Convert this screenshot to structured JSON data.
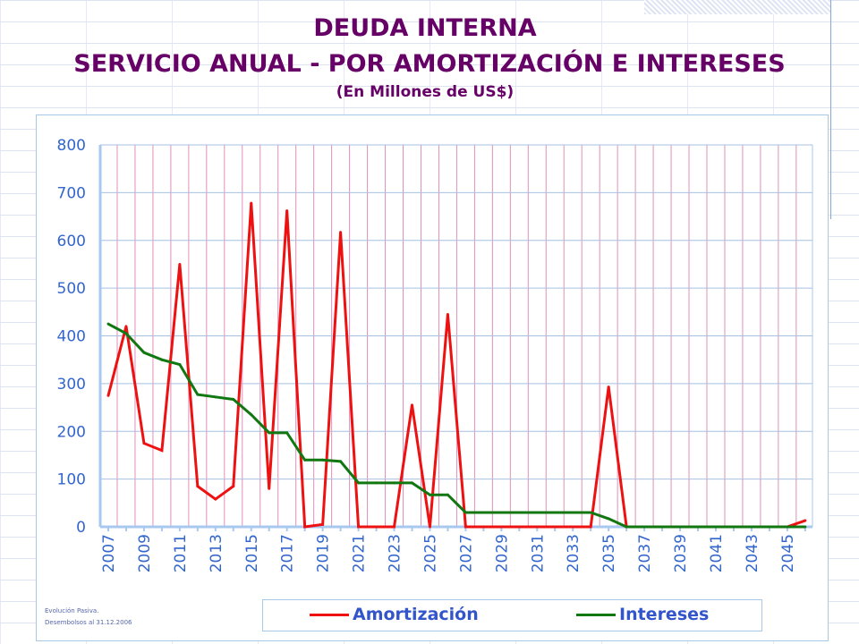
{
  "chart_data": {
    "type": "line",
    "title": "DEUDA INTERNA",
    "subtitle": "SERVICIO ANUAL - POR AMORTIZACIÓN E INTERESES",
    "unit_note": "(En Millones de US$)",
    "x": [
      2007,
      2008,
      2009,
      2010,
      2011,
      2012,
      2013,
      2014,
      2015,
      2016,
      2017,
      2018,
      2019,
      2020,
      2021,
      2022,
      2023,
      2024,
      2025,
      2026,
      2027,
      2028,
      2029,
      2030,
      2031,
      2032,
      2033,
      2034,
      2035,
      2036,
      2037,
      2038,
      2039,
      2040,
      2041,
      2042,
      2043,
      2044,
      2045,
      2046
    ],
    "xticks": [
      "2007",
      "2009",
      "2011",
      "2013",
      "2015",
      "2017",
      "2019",
      "2021",
      "2023",
      "2025",
      "2027",
      "2029",
      "2031",
      "2033",
      "2035",
      "2037",
      "2039",
      "2041",
      "2043",
      "2045"
    ],
    "yticks": [
      "0",
      "100",
      "200",
      "300",
      "400",
      "500",
      "600",
      "700",
      "800"
    ],
    "ylim": [
      0,
      800
    ],
    "grid": true,
    "legend_position": "bottom",
    "series": [
      {
        "name": "Amortización",
        "color": "#ee1111",
        "values": [
          275,
          420,
          175,
          160,
          550,
          85,
          58,
          85,
          678,
          80,
          662,
          0,
          5,
          617,
          0,
          0,
          0,
          255,
          0,
          445,
          0,
          0,
          0,
          0,
          0,
          0,
          0,
          0,
          293,
          0,
          0,
          0,
          0,
          0,
          0,
          0,
          0,
          0,
          0,
          13
        ]
      },
      {
        "name": "Intereses",
        "color": "#117711",
        "values": [
          425,
          405,
          365,
          350,
          340,
          277,
          272,
          267,
          235,
          197,
          197,
          140,
          140,
          137,
          92,
          92,
          92,
          92,
          67,
          67,
          30,
          30,
          30,
          30,
          30,
          30,
          30,
          30,
          17,
          0,
          0,
          0,
          0,
          0,
          0,
          0,
          0,
          0,
          0,
          0
        ]
      }
    ]
  },
  "footnote": {
    "line1": "Evolución Pasiva.",
    "line2": "Desembolsos al 31.12.2006"
  }
}
